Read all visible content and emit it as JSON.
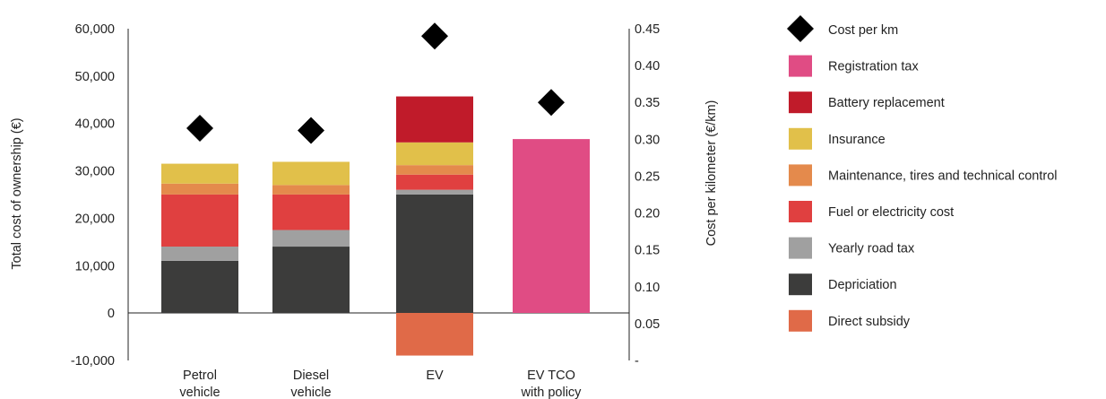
{
  "chart_data": {
    "type": "bar",
    "stacked": true,
    "categories": [
      [
        "Petrol",
        "vehicle"
      ],
      [
        "Diesel",
        "vehicle"
      ],
      [
        "EV"
      ],
      [
        "EV TCO",
        "with policy"
      ]
    ],
    "ylabel": "Total cost of ownership (€)",
    "ylim": [
      -10000,
      60000
    ],
    "yticks": [
      "60,000",
      "50,000",
      "40,000",
      "30,000",
      "20,000",
      "10,000",
      "0",
      "-10,000"
    ],
    "y2label": "Cost per kilometer (€/km)",
    "y2lim": [
      0,
      0.45
    ],
    "y2ticks": [
      "0.45",
      "0.40",
      "0.35",
      "0.30",
      "0.25",
      "0.20",
      "0.15",
      "0.10",
      "0.05",
      "-"
    ],
    "legend_position": "right",
    "series": [
      {
        "name": "Depriciation",
        "color": "#3c3c3b",
        "values": [
          11000,
          14000,
          25000,
          0
        ]
      },
      {
        "name": "Yearly road tax",
        "color": "#a0a0a0",
        "values": [
          3000,
          3500,
          1000,
          0
        ]
      },
      {
        "name": "Fuel or electricity cost",
        "color": "#e04040",
        "values": [
          11000,
          7500,
          3200,
          0
        ]
      },
      {
        "name": "Maintenance, tires and technical control",
        "color": "#e48a4c",
        "values": [
          2300,
          2000,
          2000,
          0
        ]
      },
      {
        "name": "Insurance",
        "color": "#e1c04a",
        "values": [
          4200,
          4900,
          4800,
          0
        ]
      },
      {
        "name": "Battery replacement",
        "color": "#c01b2a",
        "values": [
          0,
          0,
          9700,
          0
        ]
      },
      {
        "name": "Registration tax",
        "color": "#e04c84",
        "values": [
          0,
          0,
          0,
          36700
        ]
      },
      {
        "name": "Direct subsidy",
        "color": "#e06a48",
        "values": [
          0,
          0,
          -9000,
          0
        ]
      }
    ],
    "cost_per_km": {
      "name": "Cost per km",
      "color": "#000000",
      "values": [
        0.315,
        0.312,
        0.44,
        0.35
      ]
    },
    "legend_order": [
      "Cost per km",
      "Registration tax",
      "Battery replacement",
      "Insurance",
      "Maintenance, tires and technical control",
      "Fuel or electricity cost",
      "Yearly road tax",
      "Depriciation",
      "Direct subsidy"
    ]
  }
}
